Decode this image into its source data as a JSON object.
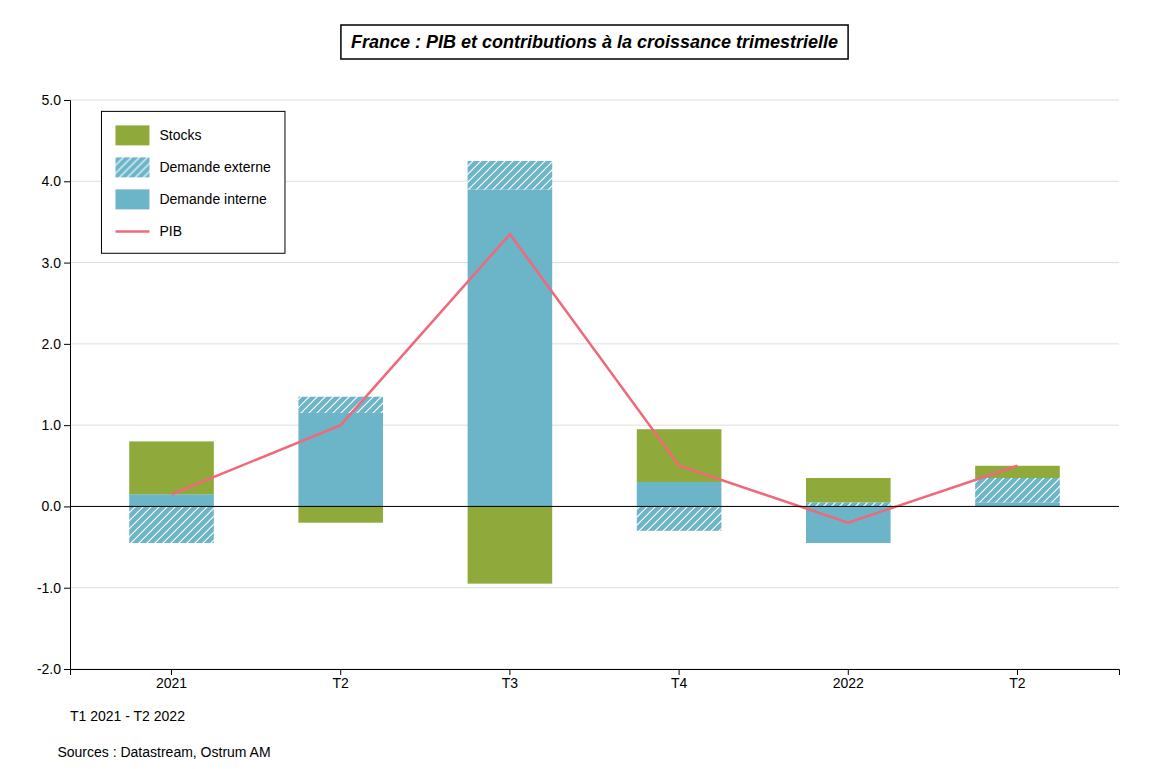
{
  "chart_data": {
    "type": "bar",
    "title": "France : PIB et contributions à la croissance trimestrielle",
    "subtitle": "T1 2021 - T2 2022",
    "annotations": [
      "Sources : Datastream, Ostrum AM"
    ],
    "categories": [
      "2021",
      "T2",
      "T3",
      "T4",
      "2022",
      "T2"
    ],
    "series": [
      {
        "name": "Stocks",
        "type": "bar",
        "color": "#8faa3b",
        "values": [
          0.65,
          -0.2,
          -0.95,
          0.65,
          0.3,
          0.15
        ]
      },
      {
        "name": "Demande externe",
        "type": "bar",
        "color": "#6cb4c8",
        "values": [
          -0.45,
          0.2,
          0.35,
          -0.3,
          0.05,
          0.3
        ]
      },
      {
        "name": "Demande interne",
        "type": "bar",
        "color": "#6cb4c8",
        "values": [
          0.15,
          1.15,
          3.9,
          0.3,
          -0.45,
          0.05
        ]
      },
      {
        "name": "PIB",
        "type": "line",
        "color": "#f0697a",
        "values": [
          0.15,
          1.0,
          3.35,
          0.5,
          -0.2,
          0.5
        ]
      }
    ],
    "stacked": true,
    "ylim": [
      -2.0,
      5.0
    ],
    "yticks": [
      {
        "value": -2.0,
        "label": "-2.0"
      },
      {
        "value": -1.0,
        "label": "-1.0"
      },
      {
        "value": 0.0,
        "label": "0.0"
      },
      {
        "value": 1.0,
        "label": "1.0"
      },
      {
        "value": 2.0,
        "label": "2.0"
      },
      {
        "value": 3.0,
        "label": "3.0"
      },
      {
        "value": 4.0,
        "label": "4.0"
      },
      {
        "value": 5.0,
        "label": "5.0"
      }
    ],
    "grid": true,
    "legend": "upper left"
  }
}
